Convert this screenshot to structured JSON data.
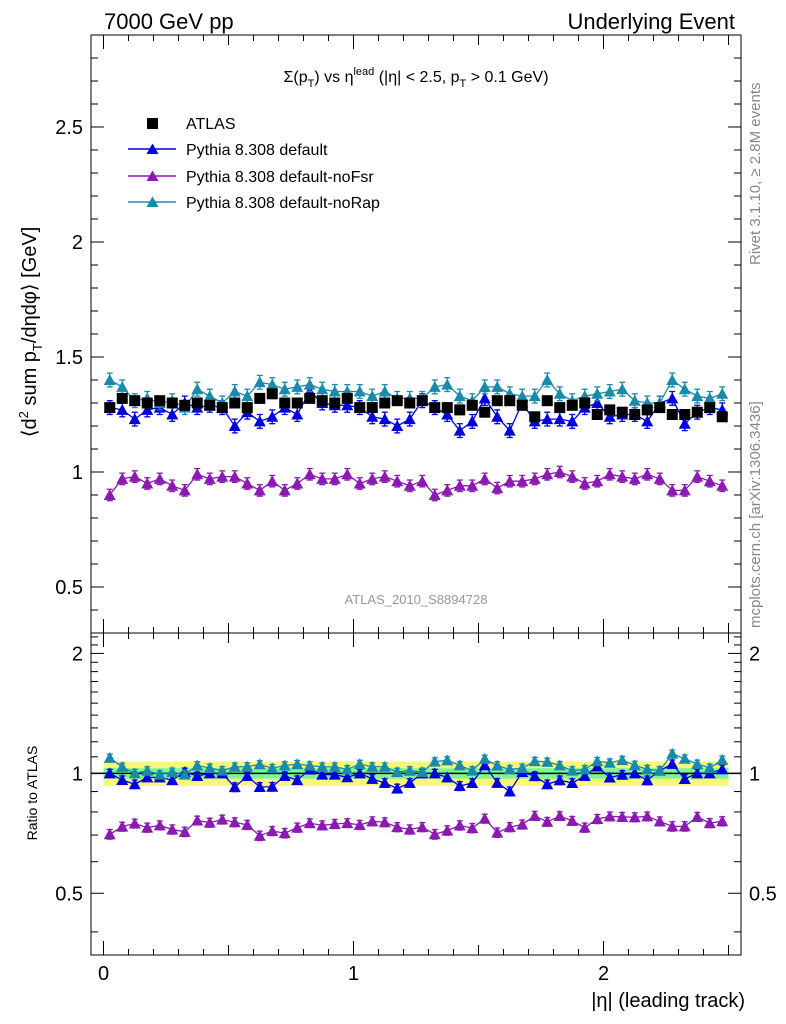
{
  "header": {
    "left": "7000 GeV pp",
    "right": "Underlying Event"
  },
  "side_labels": {
    "rivet": "Rivet 3.1.10, ≥ 2.8M events",
    "mcplots": "mcplots.cern.ch [arXiv:1306.3436]"
  },
  "chart_data": [
    {
      "type": "scatter",
      "panel": "main",
      "title": "Σ(pT) vs ηlead (|η| < 2.5, pT > 0.1 GeV)",
      "title_parts": {
        "sigma": "Σ(p",
        "sub_T": "T",
        "vs": ") vs η",
        "sup_lead": "lead",
        "cut1": " (|η| < 2.5, p",
        "sub_T2": "T",
        "cut2": " > 0.1 GeV)"
      },
      "ylabel": "⟨d² sum pT/dηdφ⟩ [GeV]",
      "ylabel_parts": {
        "a": "⟨d",
        "sup": "2",
        "b": " sum p",
        "sub": "T",
        "c": "/dηdφ⟩ [GeV]"
      },
      "watermark": "ATLAS_2010_S8894728",
      "xlim": [
        -0.05,
        2.55
      ],
      "ylim": [
        0.3,
        2.9
      ],
      "yticks": [
        0.5,
        1,
        1.5,
        2,
        2.5
      ],
      "ytick_labels": [
        "0.5",
        "1",
        "1.5",
        "2",
        "2.5"
      ],
      "legend_position": "top-left",
      "x": [
        0.025,
        0.075,
        0.125,
        0.175,
        0.225,
        0.275,
        0.325,
        0.375,
        0.425,
        0.475,
        0.525,
        0.575,
        0.625,
        0.675,
        0.725,
        0.775,
        0.825,
        0.875,
        0.925,
        0.975,
        1.025,
        1.075,
        1.125,
        1.175,
        1.225,
        1.275,
        1.325,
        1.375,
        1.425,
        1.475,
        1.525,
        1.575,
        1.625,
        1.675,
        1.725,
        1.775,
        1.825,
        1.875,
        1.925,
        1.975,
        2.025,
        2.075,
        2.125,
        2.175,
        2.225,
        2.275,
        2.325,
        2.375,
        2.425,
        2.475
      ],
      "series": [
        {
          "name": "ATLAS",
          "color": "#000000",
          "marker": "square",
          "values": [
            1.28,
            1.32,
            1.31,
            1.3,
            1.31,
            1.3,
            1.29,
            1.3,
            1.29,
            1.28,
            1.3,
            1.28,
            1.32,
            1.34,
            1.3,
            1.3,
            1.32,
            1.31,
            1.3,
            1.32,
            1.28,
            1.28,
            1.3,
            1.31,
            1.3,
            1.31,
            1.28,
            1.28,
            1.27,
            1.29,
            1.26,
            1.31,
            1.31,
            1.29,
            1.24,
            1.31,
            1.28,
            1.29,
            1.3,
            1.25,
            1.27,
            1.26,
            1.25,
            1.27,
            1.28,
            1.25,
            1.25,
            1.26,
            1.28,
            1.24
          ],
          "errors": [
            0.015,
            0.015,
            0.015,
            0.015,
            0.015,
            0.015,
            0.015,
            0.015,
            0.015,
            0.015,
            0.015,
            0.015,
            0.015,
            0.015,
            0.015,
            0.015,
            0.015,
            0.015,
            0.015,
            0.015,
            0.015,
            0.015,
            0.015,
            0.015,
            0.015,
            0.015,
            0.015,
            0.015,
            0.015,
            0.015,
            0.015,
            0.015,
            0.015,
            0.015,
            0.015,
            0.015,
            0.015,
            0.015,
            0.015,
            0.015,
            0.015,
            0.015,
            0.015,
            0.015,
            0.015,
            0.015,
            0.015,
            0.015,
            0.015,
            0.015
          ]
        },
        {
          "name": "Pythia 8.308 default",
          "color": "#0000dd",
          "marker": "triangle",
          "values": [
            1.28,
            1.27,
            1.23,
            1.27,
            1.28,
            1.25,
            1.3,
            1.28,
            1.29,
            1.28,
            1.2,
            1.26,
            1.22,
            1.24,
            1.28,
            1.25,
            1.35,
            1.3,
            1.29,
            1.29,
            1.28,
            1.24,
            1.23,
            1.2,
            1.23,
            1.31,
            1.28,
            1.25,
            1.18,
            1.22,
            1.32,
            1.24,
            1.18,
            1.3,
            1.22,
            1.23,
            1.23,
            1.22,
            1.28,
            1.3,
            1.24,
            1.25,
            1.25,
            1.22,
            1.3,
            1.32,
            1.21,
            1.26,
            1.28,
            1.27
          ],
          "errors": [
            0.03,
            0.03,
            0.03,
            0.03,
            0.03,
            0.03,
            0.03,
            0.03,
            0.03,
            0.03,
            0.03,
            0.03,
            0.03,
            0.03,
            0.03,
            0.03,
            0.03,
            0.03,
            0.03,
            0.03,
            0.03,
            0.03,
            0.03,
            0.03,
            0.03,
            0.03,
            0.03,
            0.03,
            0.03,
            0.03,
            0.03,
            0.03,
            0.03,
            0.03,
            0.03,
            0.03,
            0.03,
            0.03,
            0.03,
            0.03,
            0.03,
            0.03,
            0.03,
            0.03,
            0.03,
            0.03,
            0.03,
            0.03,
            0.03,
            0.03
          ]
        },
        {
          "name": "Pythia 8.308 default-noFsr",
          "color": "#8b1ab0",
          "marker": "triangle",
          "values": [
            0.9,
            0.97,
            0.98,
            0.95,
            0.97,
            0.94,
            0.92,
            0.99,
            0.97,
            0.98,
            0.98,
            0.95,
            0.92,
            0.96,
            0.92,
            0.95,
            0.99,
            0.97,
            0.97,
            0.99,
            0.95,
            0.97,
            0.98,
            0.96,
            0.94,
            0.96,
            0.9,
            0.92,
            0.94,
            0.94,
            0.97,
            0.93,
            0.96,
            0.96,
            0.97,
            0.99,
            1.0,
            0.98,
            0.95,
            0.96,
            0.99,
            0.98,
            0.97,
            0.99,
            0.97,
            0.92,
            0.92,
            0.98,
            0.96,
            0.94
          ],
          "errors": [
            0.025,
            0.025,
            0.025,
            0.025,
            0.025,
            0.025,
            0.025,
            0.025,
            0.025,
            0.025,
            0.025,
            0.025,
            0.025,
            0.025,
            0.025,
            0.025,
            0.025,
            0.025,
            0.025,
            0.025,
            0.025,
            0.025,
            0.025,
            0.025,
            0.025,
            0.025,
            0.025,
            0.025,
            0.025,
            0.025,
            0.025,
            0.025,
            0.025,
            0.025,
            0.025,
            0.025,
            0.025,
            0.025,
            0.025,
            0.025,
            0.025,
            0.025,
            0.025,
            0.025,
            0.025,
            0.025,
            0.025,
            0.025,
            0.025,
            0.025
          ]
        },
        {
          "name": "Pythia 8.308 default-noRap",
          "color": "#1a8aaa",
          "marker": "triangle",
          "values": [
            1.4,
            1.37,
            1.31,
            1.32,
            1.3,
            1.31,
            1.28,
            1.36,
            1.33,
            1.3,
            1.35,
            1.33,
            1.39,
            1.38,
            1.36,
            1.37,
            1.38,
            1.36,
            1.35,
            1.35,
            1.35,
            1.33,
            1.35,
            1.32,
            1.32,
            1.32,
            1.37,
            1.38,
            1.33,
            1.31,
            1.37,
            1.37,
            1.34,
            1.33,
            1.33,
            1.4,
            1.34,
            1.31,
            1.33,
            1.34,
            1.35,
            1.36,
            1.31,
            1.3,
            1.3,
            1.4,
            1.36,
            1.33,
            1.32,
            1.34
          ],
          "errors": [
            0.03,
            0.03,
            0.03,
            0.03,
            0.03,
            0.03,
            0.03,
            0.03,
            0.03,
            0.03,
            0.03,
            0.03,
            0.03,
            0.03,
            0.03,
            0.03,
            0.03,
            0.03,
            0.03,
            0.03,
            0.03,
            0.03,
            0.03,
            0.03,
            0.03,
            0.03,
            0.03,
            0.03,
            0.03,
            0.03,
            0.03,
            0.03,
            0.03,
            0.03,
            0.03,
            0.03,
            0.03,
            0.03,
            0.03,
            0.03,
            0.03,
            0.03,
            0.03,
            0.03,
            0.03,
            0.03,
            0.03,
            0.03,
            0.03,
            0.03
          ]
        }
      ]
    },
    {
      "type": "scatter",
      "panel": "ratio",
      "ylabel": "Ratio to ATLAS",
      "xlabel": "|η| (leading track)",
      "xlim": [
        -0.05,
        2.55
      ],
      "xticks": [
        0,
        1,
        2
      ],
      "xtick_labels": [
        "0",
        "1",
        "2"
      ],
      "ylim": [
        0.35,
        2.25
      ],
      "yticks": [
        0.5,
        1,
        2
      ],
      "ytick_labels": [
        "0.5",
        "1",
        "2"
      ],
      "right_ytick_labels": [
        "0.5",
        "1",
        "2"
      ],
      "bands": {
        "stat_color": "#7df59a",
        "total_color": "#f7f77a",
        "stat_halfwidth": 0.03,
        "total_halfwidth": 0.07
      }
    }
  ]
}
